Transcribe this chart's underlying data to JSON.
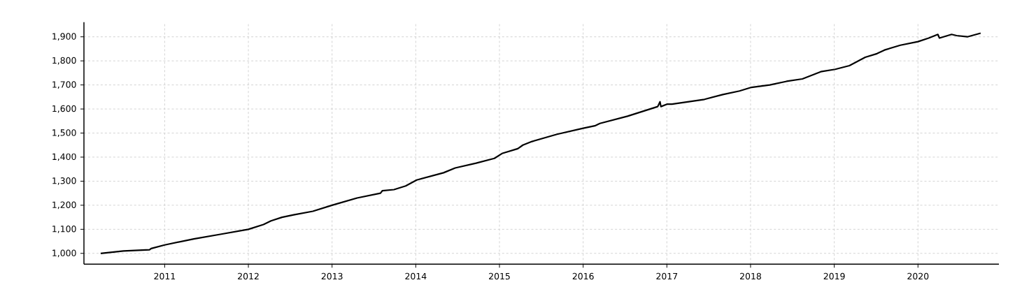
{
  "chart_data": {
    "type": "line",
    "x": [
      "2010-03-28",
      "2010-07-05",
      "2010-10-27",
      "2010-11-03",
      "2011-01-01",
      "2011-05-08",
      "2011-09-05",
      "2012-01-01",
      "2012-03-07",
      "2012-04-09",
      "2012-05-27",
      "2012-07-17",
      "2012-10-09",
      "2013-01-01",
      "2013-04-20",
      "2013-07-31",
      "2013-08-08",
      "2013-09-28",
      "2013-11-18",
      "2014-01-05",
      "2014-05-02",
      "2014-06-22",
      "2014-09-21",
      "2014-12-10",
      "2015-01-12",
      "2015-03-22",
      "2015-04-13",
      "2015-05-23",
      "2015-09-09",
      "2016-01-01",
      "2016-02-21",
      "2016-03-14",
      "2016-07-13",
      "2016-11-22",
      "2016-12-02",
      "2016-12-06",
      "2017-01-01",
      "2017-01-23",
      "2017-06-14",
      "2017-09-02",
      "2017-11-14",
      "2018-01-05",
      "2018-03-26",
      "2018-06-07",
      "2018-08-15",
      "2018-11-03",
      "2019-01-05",
      "2019-03-08",
      "2019-05-16",
      "2019-07-06",
      "2019-08-08",
      "2019-10-16",
      "2020-01-01",
      "2020-02-17",
      "2020-03-28",
      "2020-04-04",
      "2020-05-27",
      "2020-06-18",
      "2020-08-04",
      "2020-10-01"
    ],
    "series": [
      {
        "color": "#000000",
        "values": [
          1000,
          1010,
          1015,
          1020,
          1035,
          1060,
          1080,
          1100,
          1120,
          1135,
          1150,
          1160,
          1175,
          1200,
          1230,
          1250,
          1260,
          1265,
          1280,
          1305,
          1335,
          1355,
          1375,
          1395,
          1415,
          1435,
          1450,
          1465,
          1495,
          1520,
          1530,
          1540,
          1570,
          1610,
          1630,
          1610,
          1620,
          1620,
          1640,
          1660,
          1675,
          1690,
          1700,
          1715,
          1725,
          1755,
          1765,
          1780,
          1815,
          1830,
          1845,
          1865,
          1880,
          1895,
          1910,
          1895,
          1910,
          1905,
          1900,
          1915
        ]
      }
    ],
    "xlim": [
      "2010-01-14",
      "2020-12-20"
    ],
    "xticks": [
      "2011",
      "2012",
      "2013",
      "2014",
      "2015",
      "2016",
      "2017",
      "2018",
      "2019",
      "2020"
    ],
    "ylim": [
      955,
      1961
    ],
    "yticks": [
      {
        "value": 1000,
        "label": "1,000"
      },
      {
        "value": 1100,
        "label": "1,100"
      },
      {
        "value": 1200,
        "label": "1,200"
      },
      {
        "value": 1300,
        "label": "1,300"
      },
      {
        "value": 1400,
        "label": "1,400"
      },
      {
        "value": 1500,
        "label": "1,500"
      },
      {
        "value": 1600,
        "label": "1,600"
      },
      {
        "value": 1700,
        "label": "1,700"
      },
      {
        "value": 1800,
        "label": "1,800"
      },
      {
        "value": 1900,
        "label": "1,900"
      }
    ],
    "grid": true
  }
}
